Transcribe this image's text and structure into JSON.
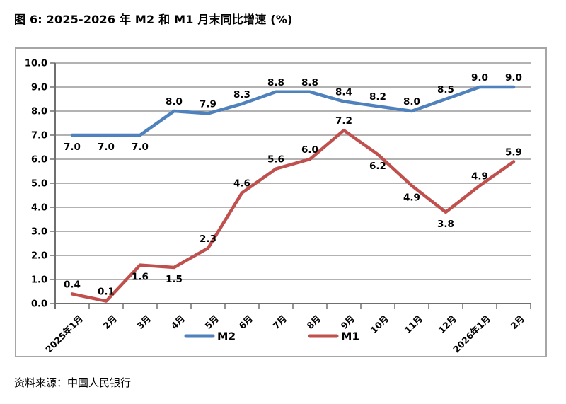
{
  "figure": {
    "title": "图 6: 2025-2026 年 M2 和 M1 月末同比增速 (%)",
    "source": "资料来源：中国人民银行"
  },
  "chart_data": {
    "type": "line",
    "title": "图 6: 2025-2026 年 M2 和 M1 月末同比增速 (%)",
    "categories": [
      "2025年1月",
      "2月",
      "3月",
      "4月",
      "5月",
      "6月",
      "7月",
      "8月",
      "9月",
      "10月",
      "11月",
      "12月",
      "2026年1月",
      "2月"
    ],
    "series": [
      {
        "name": "M2",
        "color": "#4f81bd",
        "values": [
          7.0,
          7.0,
          7.0,
          8.0,
          7.9,
          8.3,
          8.8,
          8.8,
          8.4,
          8.2,
          8.0,
          8.5,
          9.0,
          9.0
        ],
        "label_positions": [
          "below",
          "below",
          "below",
          "above",
          "above",
          "above",
          "above",
          "above",
          "above",
          "above",
          "above",
          "above",
          "above",
          "above"
        ]
      },
      {
        "name": "M1",
        "color": "#c0504d",
        "values": [
          0.4,
          0.1,
          1.6,
          1.5,
          2.3,
          4.6,
          5.6,
          6.0,
          7.2,
          6.2,
          4.9,
          3.8,
          4.9,
          5.9
        ],
        "label_positions": [
          "above",
          "above",
          "below",
          "below",
          "above",
          "above",
          "above",
          "above",
          "above",
          "below",
          "below",
          "below",
          "above",
          "above"
        ]
      }
    ],
    "ylim": [
      0,
      10
    ],
    "y_tick_step": 1.0,
    "y_tick_labels": [
      "0.0",
      "1.0",
      "2.0",
      "3.0",
      "4.0",
      "5.0",
      "6.0",
      "7.0",
      "8.0",
      "9.0",
      "10.0"
    ],
    "grid": "horizontal",
    "legend_position": "bottom",
    "legend": [
      "M2",
      "M1"
    ],
    "source": "资料来源：中国人民银行",
    "colors": {
      "m2_line": "#4f81bd",
      "m1_line": "#c0504d",
      "gridline": "#858585",
      "axis": "#6f6f6f",
      "frame_border": "#a6a6a6",
      "text": "#000000"
    }
  }
}
